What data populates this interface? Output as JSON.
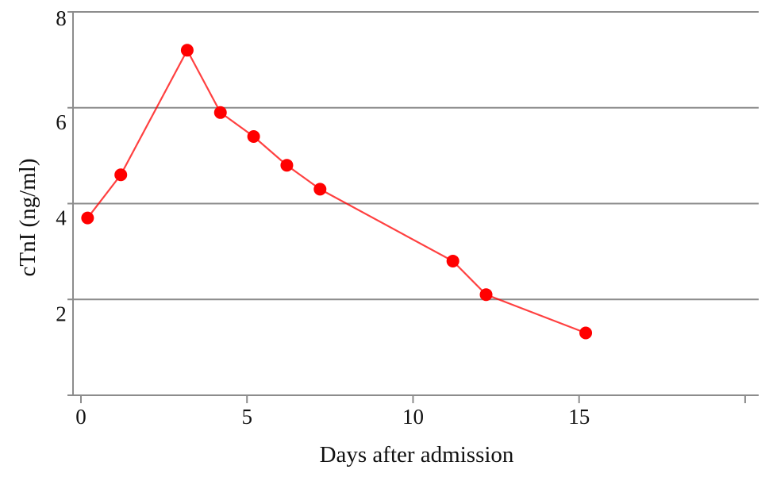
{
  "chart_data": {
    "type": "line",
    "xlabel": "Days after admission",
    "ylabel": "cTnI (ng/ml)",
    "xlim": [
      0,
      20
    ],
    "ylim": [
      0,
      8
    ],
    "x_ticks": [
      "0",
      "5",
      "10",
      "15"
    ],
    "y_ticks": [
      "2",
      "4",
      "6",
      "8"
    ],
    "grid": "horizontal",
    "series": [
      {
        "color": "#ff0000",
        "x": [
          0.2,
          1.2,
          3.2,
          4.2,
          5.2,
          6.2,
          7.2,
          11.2,
          12.2,
          15.2
        ],
        "y": [
          3.7,
          4.6,
          7.2,
          5.9,
          5.4,
          4.8,
          4.3,
          2.8,
          2.1,
          1.3
        ]
      }
    ]
  }
}
